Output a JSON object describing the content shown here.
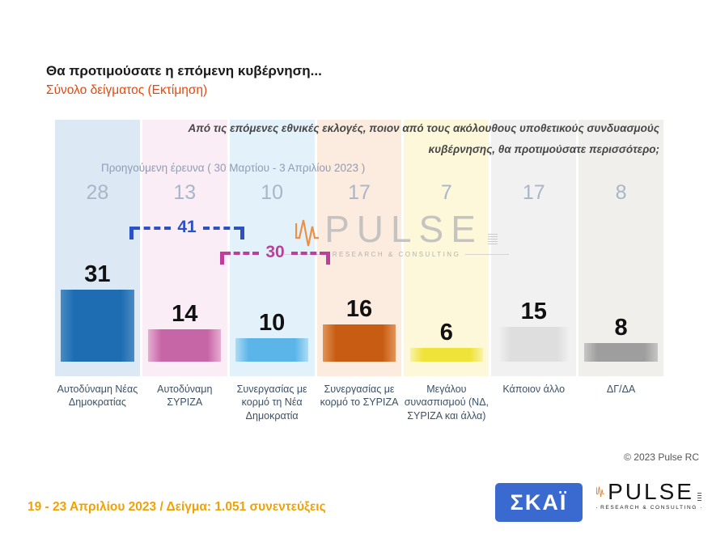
{
  "header": {
    "title": "Θα προτιμούσατε η επόμενη κυβέρνηση...",
    "subtitle": "Σύνολο δείγματος  (Εκτίμηση)"
  },
  "question": {
    "line1": "Από τις επόμενες εθνικές εκλογές, ποιον από τους ακόλουθους υποθετικούς συνδυασμούς",
    "line2": "κυβέρνησης, θα προτιμούσατε περισσότερο;"
  },
  "previous_label": "Προηγούμενη έρευνα  ( 30 Μαρτίου - 3 Απριλίου  2023 )",
  "chart_data": {
    "type": "bar",
    "categories": [
      "Αυτοδύναμη Νέας Δημοκρατίας",
      "Αυτοδύναμη ΣΥΡΙΖΑ",
      "Συνεργασίας με κορμό τη Νέα Δημοκρατία",
      "Συνεργασίας με κορμό το ΣΥΡΙΖΑ",
      "Μεγάλου συνασπισμού (ΝΔ, ΣΥΡΙΖΑ και άλλα)",
      "Κάποιον άλλο",
      "ΔΓ/ΔΑ"
    ],
    "series": [
      {
        "name": "Προηγούμενη έρευνα ( 30 Μαρτίου - 3 Απριλίου 2023 )",
        "values": [
          28,
          13,
          10,
          17,
          7,
          17,
          8
        ]
      },
      {
        "name": "Εκτίμηση (19 - 23 Απριλίου 2023)",
        "values": [
          31,
          14,
          10,
          16,
          6,
          15,
          8
        ]
      }
    ],
    "annotations": [
      {
        "label": "41",
        "from_index": 0,
        "to_index": 2,
        "color": "#2a52c4"
      },
      {
        "label": "30",
        "from_index": 1,
        "to_index": 3,
        "color": "#bc3f9b"
      }
    ],
    "bar_colors": [
      "#1e6cb2",
      "#c766a6",
      "#5cb5e8",
      "#c85c12",
      "#efe339",
      "#dedede",
      "#9e9e9e"
    ],
    "bar_edge_colors": [
      "#4a8cc4",
      "#e6aed3",
      "#aedcf5",
      "#e29458",
      "#f8f2a6",
      "#f2f2f2",
      "#c6c6c6"
    ],
    "column_bg": [
      "#dce9f5",
      "#fbedf5",
      "#e3f1fb",
      "#fcecdf",
      "#fdf8da",
      "#f1f1f1",
      "#f0efec"
    ],
    "title": "Θα προτιμούσατε η επόμενη κυβέρνηση... Σύνολο δείγματος (Εκτίμηση)",
    "legend_position": "none",
    "grid": false
  },
  "watermark": {
    "text": "PULSE",
    "subtext": "RESEARCH  &  CONSULTING"
  },
  "footer": {
    "date_sample": "19 - 23  Απριλίου  2023  /  Δείγμα:  1.051 συνεντεύξεις",
    "copyright": "© 2023 Pulse RC"
  },
  "logos": {
    "skai_text": "ΣΚΑΪ",
    "pulse_text": "PULSE",
    "pulse_subtext": "RESEARCH & CONSULTING"
  }
}
